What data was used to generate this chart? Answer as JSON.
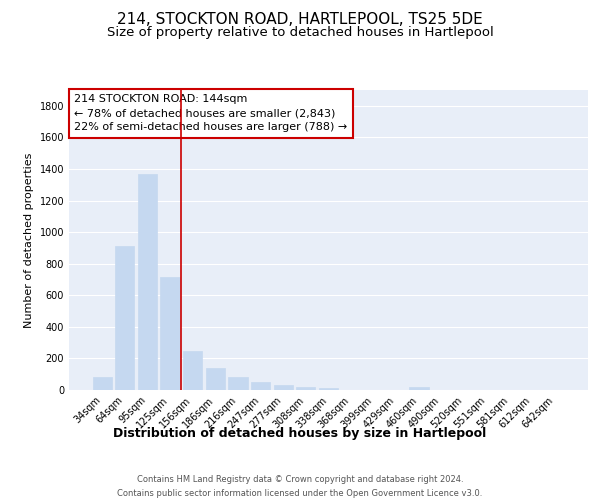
{
  "title": "214, STOCKTON ROAD, HARTLEPOOL, TS25 5DE",
  "subtitle": "Size of property relative to detached houses in Hartlepool",
  "xlabel": "Distribution of detached houses by size in Hartlepool",
  "ylabel": "Number of detached properties",
  "categories": [
    "34sqm",
    "64sqm",
    "95sqm",
    "125sqm",
    "156sqm",
    "186sqm",
    "216sqm",
    "247sqm",
    "277sqm",
    "308sqm",
    "338sqm",
    "368sqm",
    "399sqm",
    "429sqm",
    "460sqm",
    "490sqm",
    "520sqm",
    "551sqm",
    "581sqm",
    "612sqm",
    "642sqm"
  ],
  "values": [
    80,
    910,
    1370,
    715,
    248,
    140,
    85,
    52,
    30,
    20,
    10,
    0,
    0,
    0,
    20,
    0,
    0,
    0,
    0,
    0,
    0
  ],
  "bar_color": "#c5d8f0",
  "bar_edge_color": "#c5d8f0",
  "background_color": "#ffffff",
  "plot_bg_color": "#e8eef8",
  "grid_color": "#ffffff",
  "vline_color": "#cc0000",
  "vline_x": 3.5,
  "annotation_line1": "214 STOCKTON ROAD: 144sqm",
  "annotation_line2": "← 78% of detached houses are smaller (2,843)",
  "annotation_line3": "22% of semi-detached houses are larger (788) →",
  "annotation_box_color": "#cc0000",
  "ylim": [
    0,
    1900
  ],
  "yticks": [
    0,
    200,
    400,
    600,
    800,
    1000,
    1200,
    1400,
    1600,
    1800
  ],
  "title_fontsize": 11,
  "subtitle_fontsize": 9.5,
  "xlabel_fontsize": 9,
  "ylabel_fontsize": 8,
  "tick_fontsize": 7,
  "annotation_fontsize": 8,
  "footer_fontsize": 6,
  "footer_line1": "Contains HM Land Registry data © Crown copyright and database right 2024.",
  "footer_line2": "Contains public sector information licensed under the Open Government Licence v3.0."
}
